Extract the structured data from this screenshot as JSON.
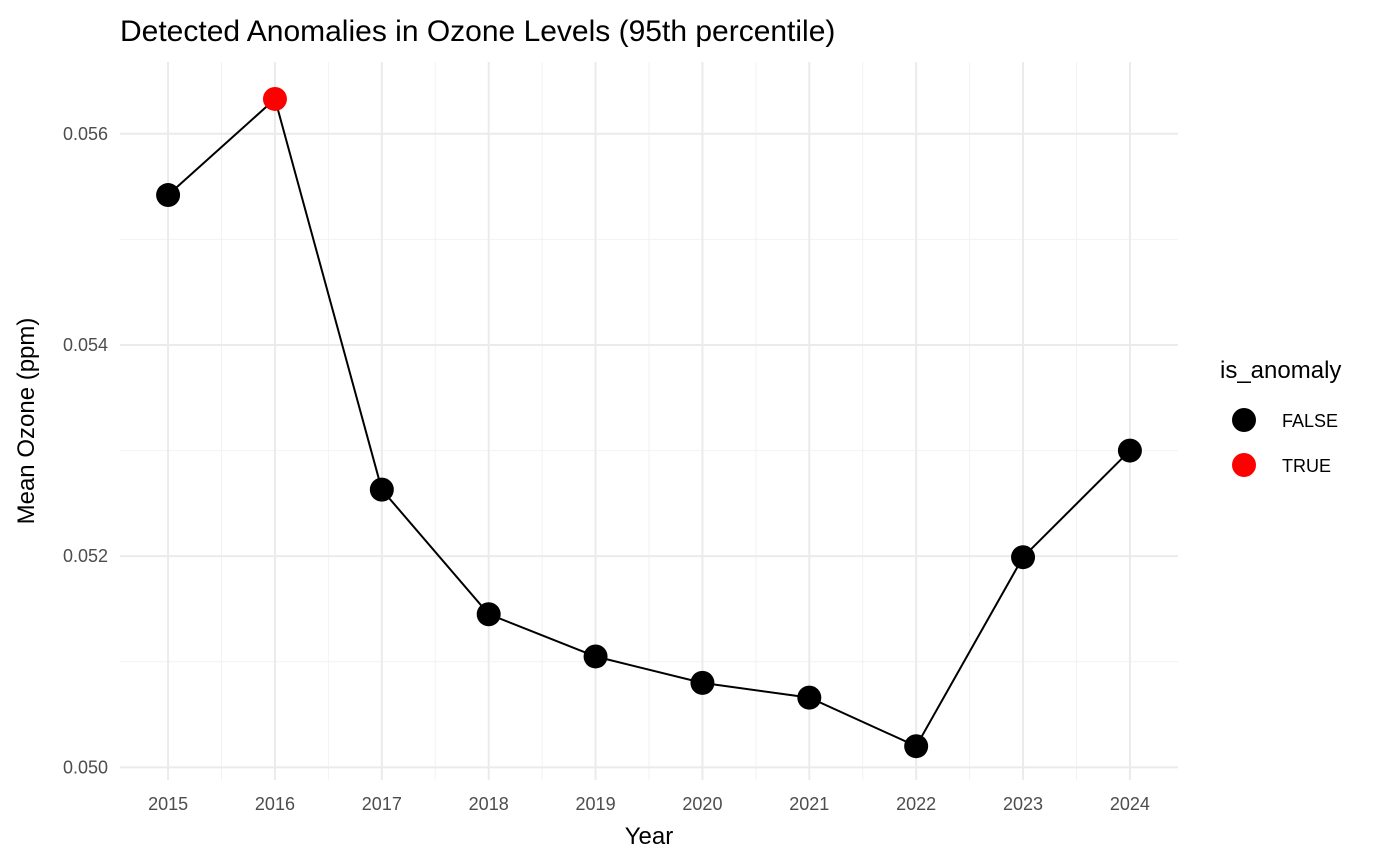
{
  "chart_data": {
    "type": "line",
    "title": "Detected Anomalies in Ozone Levels (95th percentile)",
    "xlabel": "Year",
    "ylabel": "Mean Ozone (ppm)",
    "x": [
      2015,
      2016,
      2017,
      2018,
      2019,
      2020,
      2021,
      2022,
      2023,
      2024
    ],
    "x_tick_labels": [
      "2015",
      "2016",
      "2017",
      "2018",
      "2019",
      "2020",
      "2021",
      "2022",
      "2023",
      "2024"
    ],
    "y": [
      0.05542,
      0.05633,
      0.05263,
      0.05145,
      0.05105,
      0.0508,
      0.05066,
      0.0502,
      0.05199,
      0.053
    ],
    "is_anomaly": [
      false,
      true,
      false,
      false,
      false,
      false,
      false,
      false,
      false,
      false
    ],
    "y_ticks": [
      0.05,
      0.052,
      0.054,
      0.056
    ],
    "y_tick_labels": [
      "0.050",
      "0.052",
      "0.054",
      "0.056"
    ],
    "xlim": [
      2014.55,
      2024.45
    ],
    "ylim": [
      0.04988,
      0.05668
    ],
    "grid": true,
    "legend": {
      "title": "is_anomaly",
      "placement": "right",
      "entries": [
        {
          "label": "FALSE",
          "color": "#000000"
        },
        {
          "label": "TRUE",
          "color": "#ff0000"
        }
      ]
    },
    "colors": {
      "normal": "#000000",
      "anomaly": "#ff0000",
      "line": "#000000"
    }
  }
}
